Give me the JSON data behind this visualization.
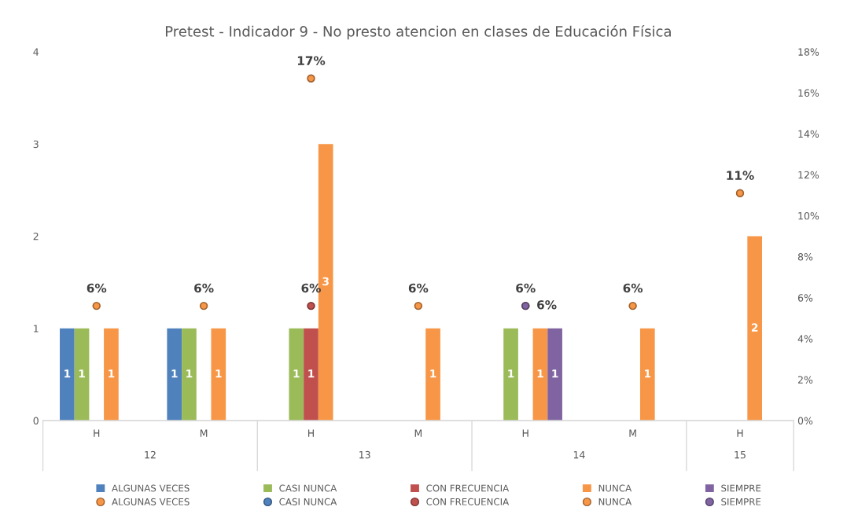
{
  "chart_data": {
    "type": "bar",
    "title": "Pretest - Indicador 9 - No presto atencion en clases de Educación Física",
    "categories": [
      "H",
      "M",
      "H",
      "M",
      "H",
      "M",
      "H"
    ],
    "annotations": [
      "12",
      "13",
      "14",
      "15"
    ],
    "ylim": [
      0,
      4
    ],
    "yticks": [
      0,
      1,
      2,
      3,
      4
    ],
    "y2lim": [
      0,
      18
    ],
    "y2ticks": [
      {
        "value": 0,
        "label": "0%"
      },
      {
        "value": 2,
        "label": "2%"
      },
      {
        "value": 4,
        "label": "4%"
      },
      {
        "value": 6,
        "label": "6%"
      },
      {
        "value": 8,
        "label": "8%"
      },
      {
        "value": 10,
        "label": "10%"
      },
      {
        "value": 12,
        "label": "12%"
      },
      {
        "value": 14,
        "label": "14%"
      },
      {
        "value": 16,
        "label": "16%"
      },
      {
        "value": 18,
        "label": "18%"
      }
    ],
    "grid": false,
    "legend": "bottom",
    "data_labels": true,
    "series": [
      {
        "name": "ALGUNAS VECES",
        "color": "#4f81bd",
        "values": [
          1,
          1,
          null,
          null,
          null,
          null,
          null
        ]
      },
      {
        "name": "CASI NUNCA",
        "color": "#9bbb59",
        "values": [
          1,
          1,
          1,
          null,
          1,
          null,
          null
        ]
      },
      {
        "name": "CON FRECUENCIA",
        "color": "#c0504d",
        "values": [
          null,
          null,
          1,
          null,
          null,
          null,
          null
        ]
      },
      {
        "name": "NUNCA",
        "color": "#f79646",
        "values": [
          1,
          1,
          3,
          1,
          1,
          1,
          2
        ]
      },
      {
        "name": "SIEMPRE",
        "color": "#8064a2",
        "values": [
          null,
          null,
          null,
          null,
          1,
          null,
          null
        ]
      },
      {
        "name": "ALGUNAS VECES",
        "type": "scatter",
        "axis": "y2",
        "marker": "circle",
        "color": "#f79646",
        "values": [
          null,
          null,
          null,
          null,
          null,
          null,
          null
        ]
      },
      {
        "name": "CASI NUNCA",
        "type": "scatter",
        "axis": "y2",
        "marker": "circle",
        "color": "#4f81bd",
        "values": [
          null,
          null,
          null,
          null,
          null,
          null,
          null
        ]
      },
      {
        "name": "CON FRECUENCIA",
        "type": "scatter",
        "axis": "y2",
        "marker": "circle",
        "color": "#c0504d",
        "values": [
          null,
          null,
          5.6,
          null,
          null,
          null,
          null
        ],
        "value_labels": [
          null,
          null,
          "6%",
          null,
          null,
          null,
          null
        ]
      },
      {
        "name": "NUNCA",
        "type": "scatter",
        "axis": "y2",
        "marker": "circle",
        "color": "#f79646",
        "values": [
          5.6,
          5.6,
          16.7,
          5.6,
          5.6,
          5.6,
          11.1
        ],
        "value_labels": [
          "6%",
          "6%",
          "17%",
          "6%",
          "6%",
          "6%",
          "11%"
        ]
      },
      {
        "name": "SIEMPRE",
        "type": "scatter",
        "axis": "y2",
        "marker": "circle",
        "color": "#8064a2",
        "values": [
          null,
          null,
          null,
          null,
          5.6,
          null,
          null
        ],
        "value_labels": [
          null,
          null,
          null,
          null,
          "6%",
          null,
          null
        ]
      }
    ]
  }
}
